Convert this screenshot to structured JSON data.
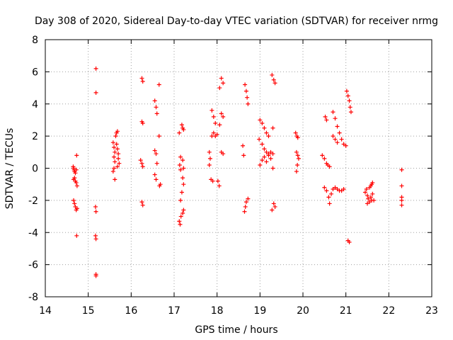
{
  "chart_data": {
    "type": "scatter",
    "title": "Day 308 of 2020, Sidereal Day-to-day VTEC variation (SDTVAR) for receiver nrmg",
    "xlabel": "GPS time / hours",
    "ylabel": "SDTVAR / TECUs",
    "xlim": [
      14,
      23
    ],
    "ylim": [
      -8,
      8
    ],
    "xticks": [
      "14",
      "15",
      "16",
      "17",
      "18",
      "19",
      "20",
      "21",
      "22",
      "23"
    ],
    "yticks": [
      "-8",
      "-6",
      "-4",
      "-2",
      "0",
      "2",
      "4",
      "6",
      "8"
    ],
    "grid": true,
    "marker": "+",
    "color": "#ff0000",
    "series": [
      {
        "name": "SDTVAR",
        "points": [
          [
            14.65,
            0.1
          ],
          [
            14.66,
            0.0
          ],
          [
            14.67,
            -0.1
          ],
          [
            14.68,
            -0.2
          ],
          [
            14.7,
            -0.3
          ],
          [
            14.72,
            -0.1
          ],
          [
            14.66,
            -0.7
          ],
          [
            14.68,
            -0.6
          ],
          [
            14.7,
            -0.8
          ],
          [
            14.72,
            -0.9
          ],
          [
            14.73,
            0.8
          ],
          [
            14.74,
            -1.1
          ],
          [
            14.66,
            -2.0
          ],
          [
            14.68,
            -2.2
          ],
          [
            14.7,
            -2.4
          ],
          [
            14.72,
            -2.6
          ],
          [
            14.74,
            -2.5
          ],
          [
            14.73,
            -4.2
          ],
          [
            15.18,
            6.2
          ],
          [
            15.18,
            4.7
          ],
          [
            15.17,
            -2.4
          ],
          [
            15.18,
            -2.7
          ],
          [
            15.17,
            -4.2
          ],
          [
            15.18,
            -4.4
          ],
          [
            15.18,
            -6.6
          ],
          [
            15.18,
            -6.7
          ],
          [
            15.58,
            1.6
          ],
          [
            15.6,
            1.3
          ],
          [
            15.62,
            1.0
          ],
          [
            15.6,
            0.7
          ],
          [
            15.62,
            0.4
          ],
          [
            15.6,
            0.0
          ],
          [
            15.58,
            -0.2
          ],
          [
            15.62,
            -0.7
          ],
          [
            15.64,
            2.0
          ],
          [
            15.66,
            2.2
          ],
          [
            15.68,
            2.3
          ],
          [
            15.66,
            1.5
          ],
          [
            15.68,
            1.2
          ],
          [
            15.7,
            0.9
          ],
          [
            15.7,
            0.6
          ],
          [
            15.72,
            0.3
          ],
          [
            15.68,
            0.1
          ],
          [
            16.25,
            5.6
          ],
          [
            16.27,
            5.4
          ],
          [
            16.25,
            2.9
          ],
          [
            16.27,
            2.8
          ],
          [
            16.22,
            0.5
          ],
          [
            16.25,
            0.3
          ],
          [
            16.27,
            0.1
          ],
          [
            16.25,
            -2.1
          ],
          [
            16.27,
            -2.3
          ],
          [
            16.55,
            4.2
          ],
          [
            16.58,
            3.8
          ],
          [
            16.6,
            3.4
          ],
          [
            16.55,
            1.1
          ],
          [
            16.58,
            0.9
          ],
          [
            16.6,
            0.3
          ],
          [
            16.55,
            -0.4
          ],
          [
            16.58,
            -0.7
          ],
          [
            16.65,
            5.2
          ],
          [
            16.65,
            2.0
          ],
          [
            16.68,
            -1.0
          ],
          [
            16.66,
            -1.1
          ],
          [
            17.12,
            2.2
          ],
          [
            17.15,
            0.7
          ],
          [
            17.13,
            0.2
          ],
          [
            17.15,
            -0.1
          ],
          [
            17.18,
            2.7
          ],
          [
            17.2,
            2.5
          ],
          [
            17.22,
            2.4
          ],
          [
            17.2,
            0.5
          ],
          [
            17.22,
            0.0
          ],
          [
            17.2,
            -0.6
          ],
          [
            17.22,
            -1.0
          ],
          [
            17.18,
            -1.5
          ],
          [
            17.15,
            -2.0
          ],
          [
            17.12,
            -3.3
          ],
          [
            17.14,
            -3.5
          ],
          [
            17.16,
            -3.0
          ],
          [
            17.2,
            -2.8
          ],
          [
            17.22,
            -2.6
          ],
          [
            17.82,
            1.0
          ],
          [
            17.84,
            0.6
          ],
          [
            17.82,
            0.2
          ],
          [
            17.86,
            -0.7
          ],
          [
            17.9,
            -0.8
          ],
          [
            17.88,
            3.6
          ],
          [
            17.92,
            3.2
          ],
          [
            17.96,
            2.8
          ],
          [
            17.88,
            2.0
          ],
          [
            17.92,
            2.2
          ],
          [
            17.96,
            2.0
          ],
          [
            18.0,
            2.1
          ],
          [
            18.02,
            -0.8
          ],
          [
            18.05,
            -1.1
          ],
          [
            18.06,
            5.0
          ],
          [
            18.1,
            5.6
          ],
          [
            18.14,
            5.3
          ],
          [
            18.06,
            2.7
          ],
          [
            18.1,
            3.4
          ],
          [
            18.14,
            3.2
          ],
          [
            18.1,
            1.0
          ],
          [
            18.14,
            0.9
          ],
          [
            18.6,
            1.4
          ],
          [
            18.62,
            0.8
          ],
          [
            18.65,
            5.2
          ],
          [
            18.68,
            4.8
          ],
          [
            18.7,
            4.4
          ],
          [
            18.72,
            4.0
          ],
          [
            18.64,
            -2.7
          ],
          [
            18.66,
            -2.4
          ],
          [
            18.68,
            -2.1
          ],
          [
            18.72,
            -1.9
          ],
          [
            19.0,
            3.0
          ],
          [
            19.05,
            2.8
          ],
          [
            19.1,
            2.5
          ],
          [
            19.15,
            2.2
          ],
          [
            19.2,
            2.0
          ],
          [
            18.98,
            1.8
          ],
          [
            19.05,
            1.5
          ],
          [
            19.1,
            1.2
          ],
          [
            19.15,
            1.0
          ],
          [
            19.2,
            0.8
          ],
          [
            19.25,
            1.0
          ],
          [
            19.3,
            0.9
          ],
          [
            19.0,
            0.2
          ],
          [
            19.05,
            0.5
          ],
          [
            19.1,
            0.7
          ],
          [
            19.15,
            0.4
          ],
          [
            19.2,
            0.9
          ],
          [
            19.25,
            0.6
          ],
          [
            19.28,
            5.8
          ],
          [
            19.32,
            5.5
          ],
          [
            19.35,
            5.3
          ],
          [
            19.3,
            2.5
          ],
          [
            19.3,
            0.0
          ],
          [
            19.28,
            -2.6
          ],
          [
            19.32,
            -2.2
          ],
          [
            19.35,
            -2.4
          ],
          [
            19.83,
            2.2
          ],
          [
            19.86,
            2.0
          ],
          [
            19.88,
            1.9
          ],
          [
            19.85,
            1.0
          ],
          [
            19.88,
            0.8
          ],
          [
            19.9,
            0.6
          ],
          [
            19.87,
            0.2
          ],
          [
            19.85,
            -0.2
          ],
          [
            20.45,
            0.8
          ],
          [
            20.5,
            0.6
          ],
          [
            20.55,
            0.3
          ],
          [
            20.58,
            0.2
          ],
          [
            20.62,
            0.1
          ],
          [
            20.52,
            3.2
          ],
          [
            20.55,
            3.0
          ],
          [
            20.5,
            -1.2
          ],
          [
            20.55,
            -1.4
          ],
          [
            20.6,
            -1.8
          ],
          [
            20.62,
            -2.2
          ],
          [
            20.66,
            -1.6
          ],
          [
            20.7,
            3.5
          ],
          [
            20.75,
            3.1
          ],
          [
            20.8,
            2.6
          ],
          [
            20.85,
            2.2
          ],
          [
            20.9,
            1.8
          ],
          [
            20.95,
            1.5
          ],
          [
            21.0,
            1.4
          ],
          [
            20.7,
            2.0
          ],
          [
            20.75,
            1.8
          ],
          [
            20.8,
            1.6
          ],
          [
            20.7,
            -1.3
          ],
          [
            20.75,
            -1.2
          ],
          [
            20.8,
            -1.3
          ],
          [
            20.85,
            -1.4
          ],
          [
            20.9,
            -1.4
          ],
          [
            20.95,
            -1.3
          ],
          [
            21.02,
            4.8
          ],
          [
            21.05,
            4.5
          ],
          [
            21.08,
            4.2
          ],
          [
            21.1,
            3.8
          ],
          [
            21.12,
            3.5
          ],
          [
            21.05,
            -4.5
          ],
          [
            21.08,
            -4.6
          ],
          [
            21.45,
            -1.5
          ],
          [
            21.48,
            -1.3
          ],
          [
            21.5,
            -1.7
          ],
          [
            21.52,
            -1.9
          ],
          [
            21.55,
            -2.1
          ],
          [
            21.58,
            -1.8
          ],
          [
            21.6,
            -2.0
          ],
          [
            21.62,
            -1.6
          ],
          [
            21.55,
            -1.2
          ],
          [
            21.58,
            -1.1
          ],
          [
            21.6,
            -1.0
          ],
          [
            21.62,
            -0.9
          ],
          [
            21.65,
            -2.0
          ],
          [
            21.5,
            -2.2
          ],
          [
            22.3,
            -0.1
          ],
          [
            22.3,
            -1.1
          ],
          [
            22.3,
            -1.8
          ],
          [
            22.3,
            -2.0
          ],
          [
            22.3,
            -2.3
          ]
        ]
      }
    ]
  }
}
